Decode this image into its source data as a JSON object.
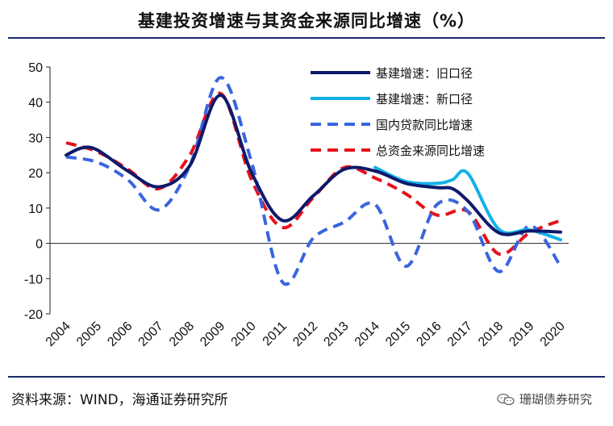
{
  "title": "基建投资增速与其资金来源同比增速（%）",
  "source": "资料来源：WIND，海通证券研究所",
  "watermark": "珊瑚债券研究",
  "chart_data": {
    "type": "line",
    "title": "基建投资增速与其资金来源同比增速（%）",
    "xlabel": "",
    "ylabel": "",
    "categories": [
      "2004",
      "2005",
      "2006",
      "2007",
      "2008",
      "2009",
      "2010",
      "2011",
      "2012",
      "2013",
      "2014",
      "2015",
      "2016",
      "2017",
      "2018",
      "2019",
      "2020"
    ],
    "ylim": [
      -20,
      50
    ],
    "yticks": [
      -20,
      -10,
      0,
      10,
      20,
      30,
      40,
      50
    ],
    "legend_position": "top-right",
    "series": [
      {
        "name": "基建增速：旧口径",
        "color": "#0d1a6b",
        "style": "solid",
        "points": [
          [
            2004,
            25
          ],
          [
            2004.5,
            27
          ],
          [
            2005,
            26.5
          ],
          [
            2006,
            20.5
          ],
          [
            2007,
            16
          ],
          [
            2008,
            22
          ],
          [
            2009,
            42
          ],
          [
            2010,
            20
          ],
          [
            2011,
            6.5
          ],
          [
            2012,
            13.5
          ],
          [
            2013,
            21
          ],
          [
            2014,
            20.5
          ],
          [
            2015,
            17
          ],
          [
            2016,
            15.8
          ],
          [
            2016.5,
            15.5
          ],
          [
            2017,
            12
          ],
          [
            2018,
            3
          ],
          [
            2019,
            3.5
          ],
          [
            2020,
            3.2
          ]
        ]
      },
      {
        "name": "基建增速：新口径",
        "color": "#11b2e8",
        "style": "solid",
        "points": [
          [
            2014,
            21.5
          ],
          [
            2015,
            17.5
          ],
          [
            2016,
            17
          ],
          [
            2016.5,
            18
          ],
          [
            2017,
            19.8
          ],
          [
            2018,
            4
          ],
          [
            2019,
            3.8
          ],
          [
            2020,
            1
          ]
        ]
      },
      {
        "name": "国内贷款同比增速",
        "color": "#3a65e0",
        "style": "dashed",
        "points": [
          [
            2004,
            24.5
          ],
          [
            2005,
            23
          ],
          [
            2006,
            18
          ],
          [
            2007,
            9.5
          ],
          [
            2008,
            22
          ],
          [
            2009,
            47
          ],
          [
            2010,
            23
          ],
          [
            2011,
            -11
          ],
          [
            2012,
            1.5
          ],
          [
            2013,
            6
          ],
          [
            2014,
            11
          ],
          [
            2015,
            -6.5
          ],
          [
            2016,
            11
          ],
          [
            2017,
            9
          ],
          [
            2018,
            -8
          ],
          [
            2019,
            5
          ],
          [
            2020,
            -6.5
          ]
        ]
      },
      {
        "name": "总资金来源同比增速",
        "color": "#e6101a",
        "style": "dashed",
        "points": [
          [
            2004,
            28.5
          ],
          [
            2005,
            26
          ],
          [
            2006,
            21
          ],
          [
            2007,
            15.5
          ],
          [
            2008,
            25
          ],
          [
            2009,
            42.5
          ],
          [
            2010,
            18
          ],
          [
            2011,
            4.5
          ],
          [
            2012,
            13
          ],
          [
            2013,
            21.5
          ],
          [
            2014,
            18.5
          ],
          [
            2015,
            14
          ],
          [
            2016,
            8
          ],
          [
            2017,
            9
          ],
          [
            2018,
            -3
          ],
          [
            2019,
            3
          ],
          [
            2020,
            6.5
          ]
        ]
      }
    ]
  }
}
